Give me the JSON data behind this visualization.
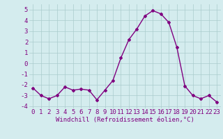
{
  "x": [
    0,
    1,
    2,
    3,
    4,
    5,
    6,
    7,
    8,
    9,
    10,
    11,
    12,
    13,
    14,
    15,
    16,
    17,
    18,
    19,
    20,
    21,
    22,
    23
  ],
  "y": [
    -2.3,
    -3.0,
    -3.3,
    -3.0,
    -2.2,
    -2.5,
    -2.4,
    -2.5,
    -3.4,
    -2.5,
    -1.6,
    0.5,
    2.2,
    3.2,
    4.4,
    4.9,
    4.6,
    3.8,
    1.5,
    -2.1,
    -3.0,
    -3.3,
    -3.0,
    -3.6
  ],
  "line_color": "#800080",
  "marker": "D",
  "marker_size": 2.0,
  "xlabel": "Windchill (Refroidissement éolien,°C)",
  "xlim_min": -0.5,
  "xlim_max": 23.5,
  "ylim_min": -4.2,
  "ylim_max": 5.5,
  "yticks": [
    -4,
    -3,
    -2,
    -1,
    0,
    1,
    2,
    3,
    4,
    5
  ],
  "xticks": [
    0,
    1,
    2,
    3,
    4,
    5,
    6,
    7,
    8,
    9,
    10,
    11,
    12,
    13,
    14,
    15,
    16,
    17,
    18,
    19,
    20,
    21,
    22,
    23
  ],
  "bg_color": "#d4ecee",
  "grid_color": "#aacccc",
  "tick_color": "#800080",
  "font_size": 6.5,
  "xlabel_fontsize": 6.5,
  "linewidth": 1.0
}
